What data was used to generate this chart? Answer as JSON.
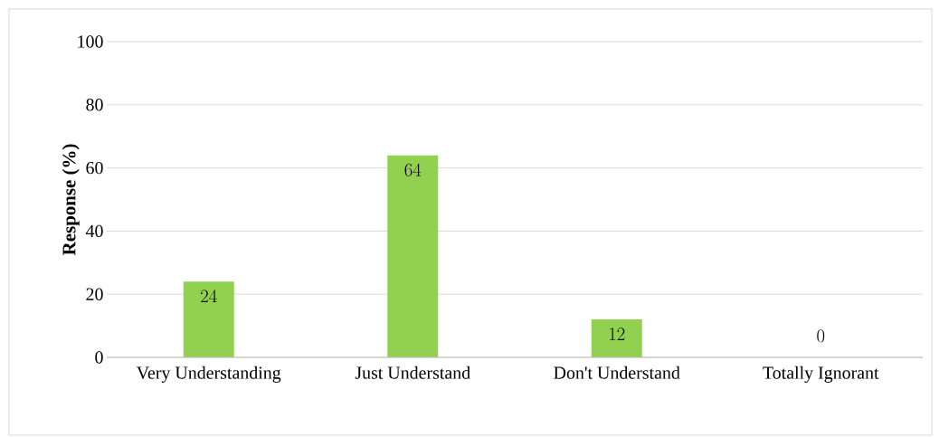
{
  "chart_data": {
    "type": "bar",
    "ylabel": "Response (%)",
    "categories": [
      "Very Understanding",
      "Just Understand",
      "Don't Understand",
      "Totally Ignorant"
    ],
    "values": [
      24,
      64,
      12,
      0
    ],
    "color": "#92d050",
    "ylim": [
      0,
      100
    ],
    "yticks": [
      0,
      20,
      40,
      60,
      80,
      100
    ],
    "grid": "y",
    "data_labels": true
  }
}
